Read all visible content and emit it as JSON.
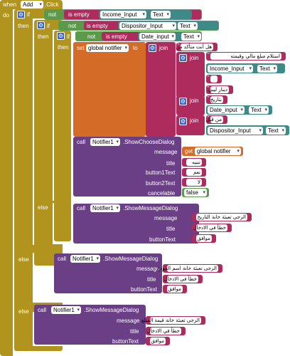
{
  "event": {
    "when": "when",
    "component": "Add",
    "event_name": ".Click",
    "do": "do"
  },
  "keywords": {
    "if": "if",
    "then": "then",
    "else": "else",
    "not": "not",
    "is_empty": "is empty",
    "call": "call",
    "join": "join",
    "set": "set",
    "to": "to",
    "get": "get"
  },
  "inputs": {
    "income": "Income_Input",
    "dispositor": "Dispositor_Input",
    "date": "Date_input",
    "text_prop": "Text"
  },
  "variables": {
    "notifier": "global notifier"
  },
  "join_strings": {
    "question": "هل أنت متأكد من",
    "deposit": "استلام مبلغ مالي وقيمته",
    "space": " ",
    "currency": "دينار ليبي",
    "date_label": "بتاريخ",
    "from": "من قبل"
  },
  "notifier": {
    "component": "Notifier1",
    "choose_dialog": ".ShowChooseDialog",
    "message_dialog": ".ShowMessageDialog"
  },
  "params": {
    "message": "message",
    "title": "title",
    "button1": "button1Text",
    "button2": "button2Text",
    "cancelable": "cancelable",
    "buttonText": "buttonText"
  },
  "choose_values": {
    "title": "تنبيه",
    "button1": "نعم",
    "button2": "لا",
    "cancelable": "false"
  },
  "else_messages": {
    "date": "الرجى تعبئة خانة التاريخ",
    "name": "الرجى تعبئة خانة اسم المودع",
    "amount": "الرجى تعبئة خانة قيمة المبلغ",
    "error_title": "خطأ في الادخال",
    "ok": "موافق"
  },
  "colors": {
    "control": "#b1941e",
    "logic": "#5b9a4a",
    "text": "#ad2b5d",
    "component": "#3d8a89",
    "procedure": "#6a3f86",
    "variable": "#d46b27"
  }
}
